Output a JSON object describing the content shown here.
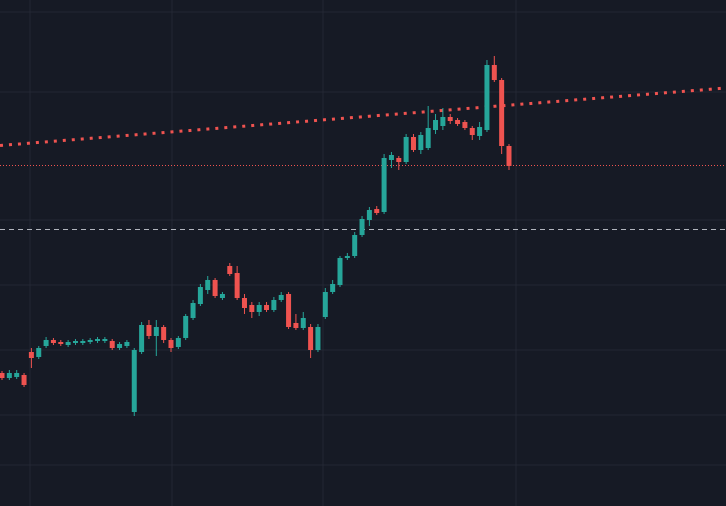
{
  "chart_data": {
    "type": "candlestick",
    "up_color": "#26a69a",
    "down_color": "#ef5350",
    "ylim": [
      0,
      506
    ],
    "open": [
      133,
      128,
      129,
      131,
      154,
      149,
      160,
      166,
      164,
      161,
      163,
      163,
      164,
      165,
      165,
      165,
      158,
      160,
      94,
      154,
      181,
      170,
      179,
      166,
      159,
      168,
      188,
      202,
      216,
      226,
      208,
      240,
      233,
      208,
      201,
      194,
      201,
      196,
      206,
      212,
      183,
      178,
      179,
      156,
      189,
      214,
      221,
      248,
      250,
      271,
      286,
      297,
      294,
      346,
      348,
      344,
      369,
      356,
      358,
      376,
      380,
      389,
      386,
      384,
      378,
      370,
      376,
      441,
      426,
      360
    ],
    "high": [
      135,
      136,
      136,
      133,
      158,
      160,
      169,
      168,
      166,
      166,
      167,
      167,
      168,
      169,
      169,
      167,
      164,
      166,
      158,
      184,
      186,
      186,
      181,
      168,
      170,
      192,
      206,
      222,
      230,
      228,
      214,
      243,
      240,
      212,
      204,
      204,
      204,
      209,
      214,
      214,
      192,
      194,
      182,
      182,
      218,
      226,
      250,
      253,
      274,
      290,
      299,
      300,
      352,
      354,
      350,
      372,
      372,
      374,
      400,
      392,
      398,
      392,
      388,
      386,
      380,
      384,
      446,
      450,
      428,
      362
    ],
    "low": [
      126,
      126,
      127,
      119,
      138,
      147,
      158,
      161,
      160,
      159,
      161,
      161,
      162,
      163,
      163,
      156,
      156,
      158,
      90,
      152,
      167,
      150,
      163,
      154,
      157,
      166,
      186,
      200,
      212,
      208,
      206,
      230,
      206,
      192,
      188,
      190,
      194,
      194,
      204,
      177,
      176,
      176,
      148,
      154,
      187,
      212,
      219,
      246,
      248,
      269,
      280,
      291,
      292,
      338,
      336,
      342,
      354,
      352,
      356,
      372,
      376,
      382,
      380,
      376,
      366,
      366,
      374,
      424,
      352,
      336
    ],
    "close": [
      128,
      133,
      133,
      121,
      148,
      158,
      166,
      163,
      162,
      164,
      165,
      165,
      166,
      167,
      167,
      158,
      162,
      164,
      156,
      181,
      170,
      179,
      166,
      158,
      168,
      190,
      203,
      219,
      226,
      210,
      212,
      232,
      208,
      198,
      194,
      201,
      196,
      206,
      211,
      179,
      178,
      188,
      156,
      179,
      214,
      222,
      248,
      250,
      271,
      287,
      296,
      293,
      348,
      351,
      344,
      369,
      356,
      371,
      378,
      386,
      389,
      385,
      382,
      378,
      371,
      379,
      441,
      426,
      360,
      340
    ]
  }
}
